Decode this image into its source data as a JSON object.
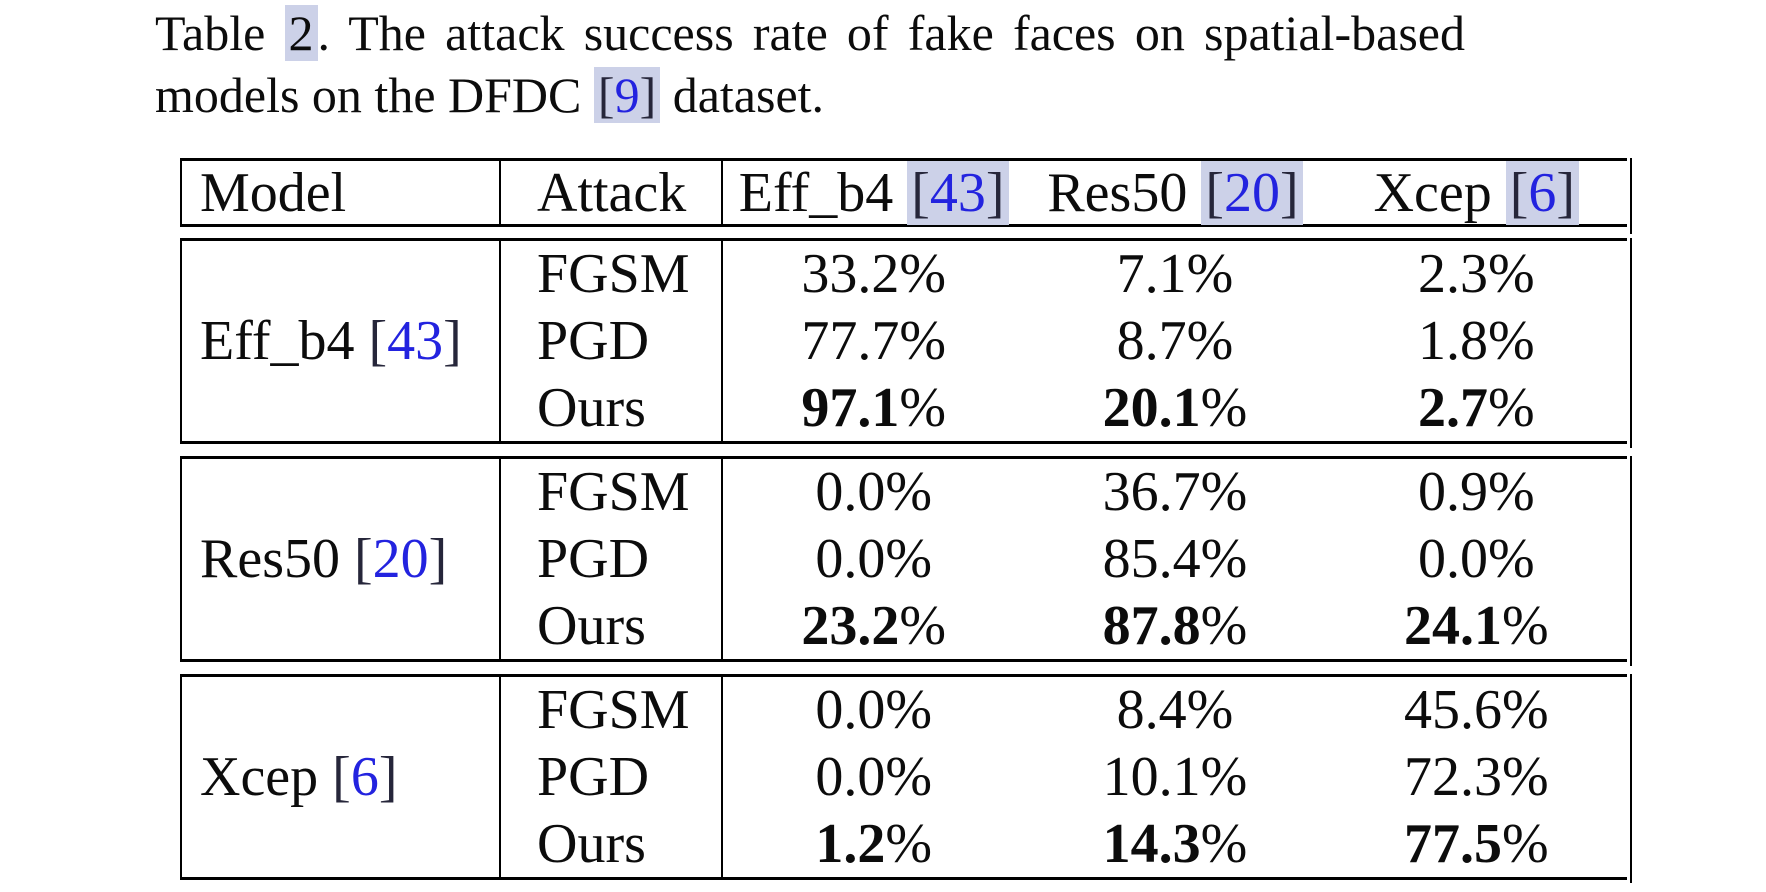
{
  "caption": {
    "prefix": "Table ",
    "number": "2",
    "after_number": ".  The attack success rate of fake faces on spatial-based",
    "line2_before": "models on the DFDC ",
    "citation": "[9]",
    "line2_after": " dataset."
  },
  "colors": {
    "link_blue": "#2323df",
    "highlight": "#ccd1e8",
    "text": "#0c0c0c",
    "border": "#000000"
  },
  "table": {
    "columns": {
      "model": "Model",
      "attack": "Attack",
      "targets": [
        {
          "label": "Eff_b4",
          "cite": "[43]"
        },
        {
          "label": "Res50",
          "cite": "[20]"
        },
        {
          "label": "Xcep",
          "cite": "[6]"
        }
      ]
    },
    "groups": [
      {
        "model": "Eff_b4",
        "cite": "[43]",
        "rows": [
          {
            "attack": "FGSM",
            "bold": false,
            "values": [
              "33.2%",
              "7.1%",
              "2.3%"
            ]
          },
          {
            "attack": "PGD",
            "bold": false,
            "values": [
              "77.7%",
              "8.7%",
              "1.8%"
            ]
          },
          {
            "attack": "Ours",
            "bold": true,
            "values": [
              "97.1%",
              "20.1%",
              "2.7%"
            ]
          }
        ]
      },
      {
        "model": "Res50",
        "cite": "[20]",
        "rows": [
          {
            "attack": "FGSM",
            "bold": false,
            "values": [
              "0.0%",
              "36.7%",
              "0.9%"
            ]
          },
          {
            "attack": "PGD",
            "bold": false,
            "values": [
              "0.0%",
              "85.4%",
              "0.0%"
            ]
          },
          {
            "attack": "Ours",
            "bold": true,
            "values": [
              "23.2%",
              "87.8%",
              "24.1%"
            ]
          }
        ]
      },
      {
        "model": "Xcep",
        "cite": "[6]",
        "rows": [
          {
            "attack": "FGSM",
            "bold": false,
            "values": [
              "0.0%",
              "8.4%",
              "45.6%"
            ]
          },
          {
            "attack": "PGD",
            "bold": false,
            "values": [
              "0.0%",
              "10.1%",
              "72.3%"
            ]
          },
          {
            "attack": "Ours",
            "bold": true,
            "values": [
              "1.2%",
              "14.3%",
              "77.5%"
            ]
          }
        ]
      }
    ]
  }
}
